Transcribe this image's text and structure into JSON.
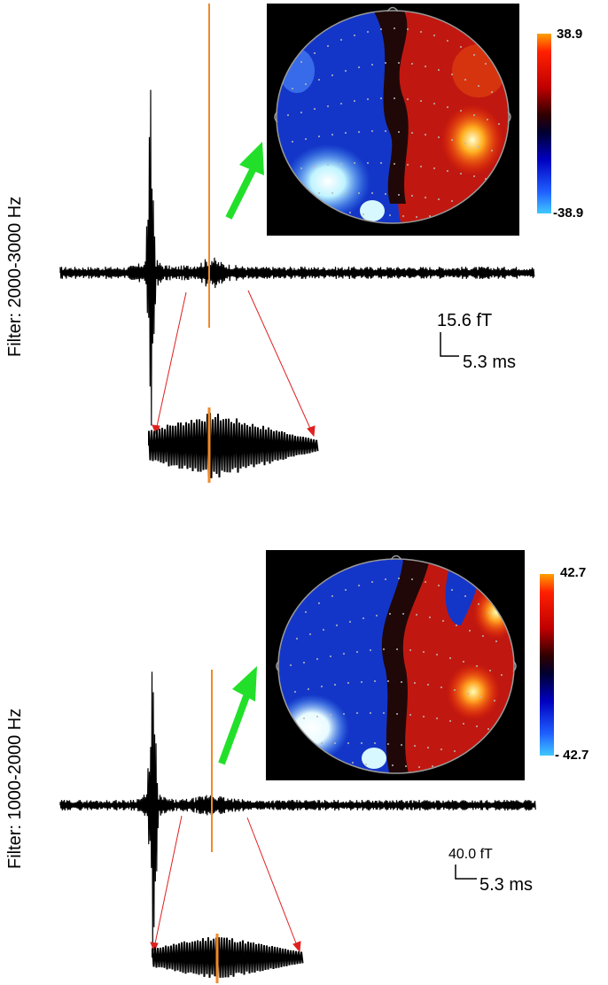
{
  "panels": [
    {
      "filter_label": "Filter: 2000-3000 Hz",
      "scale_amplitude": "15.6 fT",
      "scale_time": "5.3 ms",
      "colorbar_max": "38.9",
      "colorbar_min": "-38.9"
    },
    {
      "filter_label": "Filter: 1000-2000 Hz",
      "scale_amplitude": "40.0 fT",
      "scale_time": "5.3 ms",
      "colorbar_max": "42.7",
      "colorbar_min": "- 42.7"
    }
  ],
  "colors": {
    "trace": "#000000",
    "cursor": "#f08a2a",
    "arrow": "#22e02a",
    "zoom_lines": "#e02020",
    "map_background": "#000000"
  }
}
